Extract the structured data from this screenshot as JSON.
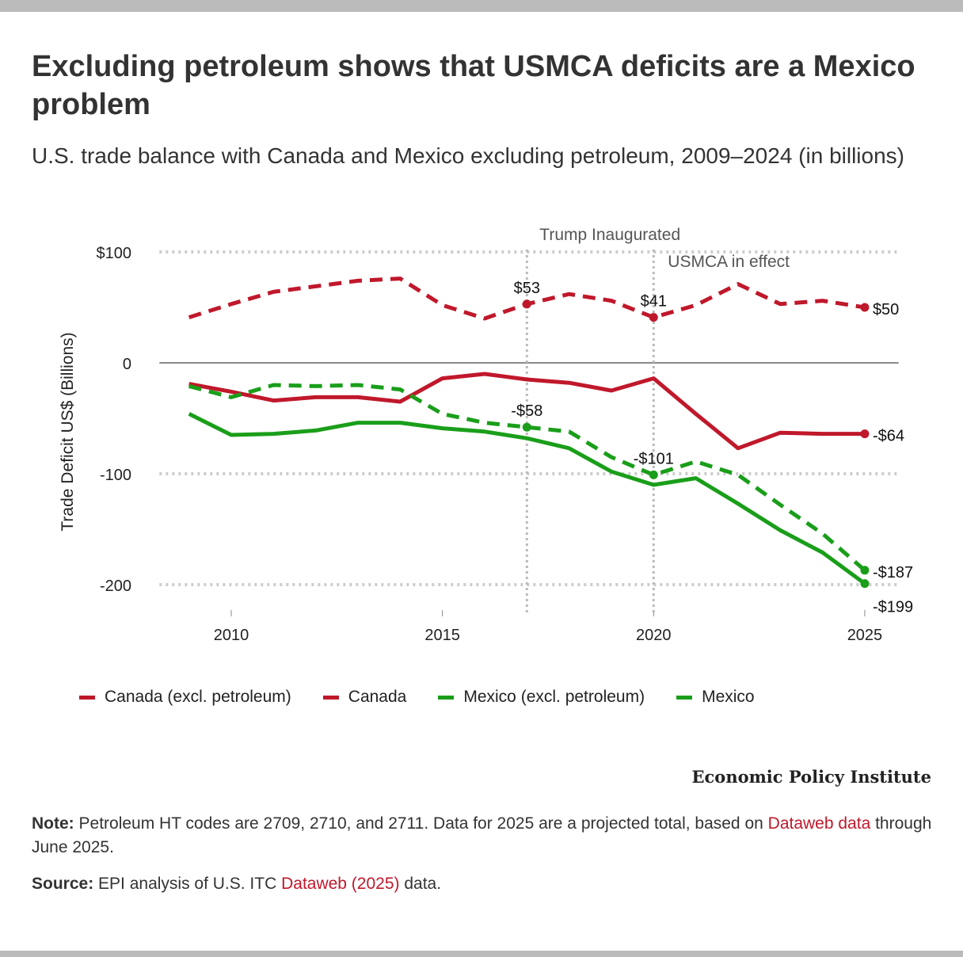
{
  "title": "Excluding petroleum shows that USMCA deficits are a Mexico problem",
  "subtitle": "U.S. trade balance with Canada and Mexico excluding petroleum, 2009–2024 (in billions)",
  "chart_data": {
    "type": "line",
    "ylabel": "Trade Deficit US$ (Billions)",
    "ylim": [
      -215,
      105
    ],
    "xlim": [
      2008.3,
      2025.8
    ],
    "yticks": [
      {
        "v": 100,
        "label": "$100"
      },
      {
        "v": 0,
        "label": "0"
      },
      {
        "v": -100,
        "label": "-100"
      },
      {
        "v": -200,
        "label": "-200"
      }
    ],
    "xticks": [
      {
        "v": 2010,
        "label": "2010"
      },
      {
        "v": 2015,
        "label": "2015"
      },
      {
        "v": 2020,
        "label": "2020"
      },
      {
        "v": 2025,
        "label": "2025"
      }
    ],
    "grid": true,
    "x": [
      2009,
      2010,
      2011,
      2012,
      2013,
      2014,
      2015,
      2016,
      2017,
      2018,
      2019,
      2020,
      2021,
      2022,
      2023,
      2024,
      2025
    ],
    "series": [
      {
        "name": "Canada (excl. petroleum)",
        "color": "#c0182b",
        "dashed": true,
        "values": [
          41,
          53,
          64,
          69,
          74,
          76,
          52,
          40,
          53,
          62,
          56,
          41,
          52,
          71,
          53,
          56,
          50
        ]
      },
      {
        "name": "Canada",
        "color": "#c0182b",
        "dashed": false,
        "values": [
          -19,
          -26,
          -34,
          -31,
          -31,
          -35,
          -14,
          -10,
          -15,
          -18,
          -25,
          -14,
          -46,
          -77,
          -63,
          -64,
          -64
        ]
      },
      {
        "name": "Mexico (excl. petroleum)",
        "color": "#1a9e1a",
        "dashed": true,
        "values": [
          -21,
          -31,
          -20,
          -21,
          -20,
          -24,
          -46,
          -54,
          -58,
          -62,
          -85,
          -101,
          -89,
          -101,
          -128,
          -154,
          -187
        ]
      },
      {
        "name": "Mexico",
        "color": "#1a9e1a",
        "dashed": false,
        "values": [
          -46,
          -65,
          -64,
          -61,
          -54,
          -54,
          -59,
          -62,
          -68,
          -77,
          -98,
          -110,
          -104,
          -127,
          -151,
          -171,
          -199
        ]
      }
    ],
    "data_labels": [
      {
        "series": 0,
        "x": 2017,
        "label": "$53",
        "pos": "above"
      },
      {
        "series": 0,
        "x": 2020,
        "label": "$41",
        "pos": "above"
      },
      {
        "series": 0,
        "x": 2025,
        "label": "$50",
        "pos": "right"
      },
      {
        "series": 1,
        "x": 2025,
        "label": "-$64",
        "pos": "right"
      },
      {
        "series": 2,
        "x": 2017,
        "label": "-$58",
        "pos": "above"
      },
      {
        "series": 2,
        "x": 2020,
        "label": "-$101",
        "pos": "above"
      },
      {
        "series": 2,
        "x": 2025,
        "label": "-$187",
        "pos": "right"
      },
      {
        "series": 3,
        "x": 2025,
        "label": "-$199",
        "pos": "below-right"
      }
    ],
    "annotations": [
      {
        "x": 2017,
        "label": "Trump Inaugurated"
      },
      {
        "x": 2020,
        "label": "USMCA in effect"
      }
    ]
  },
  "source_logo": "Economic Policy Institute",
  "note": {
    "label": "Note:",
    "text1": " Petroleum HT codes are 2709, 2710, and 2711. Data for 2025 are a projected total, based on ",
    "link": "Dataweb data",
    "text2": " through June 2025."
  },
  "source": {
    "label": "Source:",
    "text1": " EPI analysis of U.S. ITC ",
    "link": "Dataweb (2025)",
    "text2": " data."
  }
}
